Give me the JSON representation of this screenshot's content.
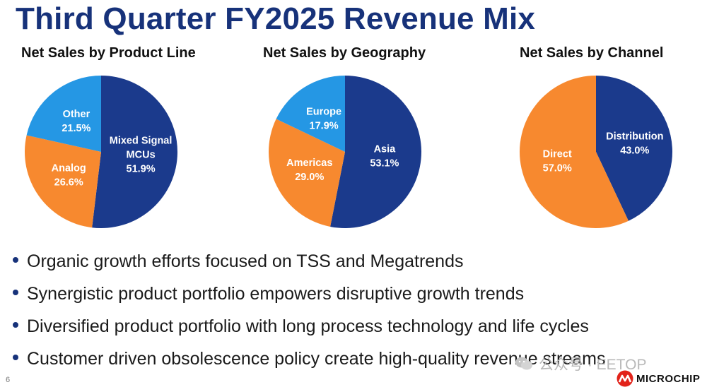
{
  "slide": {
    "title": "Third Quarter FY2025 Revenue Mix",
    "page_number": "6",
    "bullets": [
      "Organic growth efforts focused on TSS and Megatrends",
      "Synergistic product portfolio empowers disruptive growth trends",
      "Diversified product portfolio with long process technology and life cycles",
      "Customer driven obsolescence policy create high-quality revenue streams"
    ],
    "watermark_text": "公众号 · EETOP",
    "logo_text": "MICROCHIP"
  },
  "colors": {
    "navy": "#1b3a8c",
    "orange": "#f7892f",
    "sky": "#2597e4",
    "title": "#17327a"
  },
  "chart_data": [
    {
      "type": "pie",
      "title": "Net Sales by Product Line",
      "unit": "%",
      "slices": [
        {
          "label": [
            "Mixed Signal",
            "MCUs"
          ],
          "value": 51.9,
          "display": "51.9%",
          "color": "#1b3a8c"
        },
        {
          "label": [
            "Analog"
          ],
          "value": 26.6,
          "display": "26.6%",
          "color": "#f7892f"
        },
        {
          "label": [
            "Other"
          ],
          "value": 21.5,
          "display": "21.5%",
          "color": "#2597e4"
        }
      ]
    },
    {
      "type": "pie",
      "title": "Net Sales by Geography",
      "unit": "%",
      "slices": [
        {
          "label": [
            "Asia"
          ],
          "value": 53.1,
          "display": "53.1%",
          "color": "#1b3a8c"
        },
        {
          "label": [
            "Americas"
          ],
          "value": 29.0,
          "display": "29.0%",
          "color": "#f7892f"
        },
        {
          "label": [
            "Europe"
          ],
          "value": 17.9,
          "display": "17.9%",
          "color": "#2597e4"
        }
      ]
    },
    {
      "type": "pie",
      "title": "Net Sales by Channel",
      "unit": "%",
      "slices": [
        {
          "label": [
            "Distribution"
          ],
          "value": 43.0,
          "display": "43.0%",
          "color": "#1b3a8c"
        },
        {
          "label": [
            "Direct"
          ],
          "value": 57.0,
          "display": "57.0%",
          "color": "#f7892f"
        }
      ]
    }
  ]
}
